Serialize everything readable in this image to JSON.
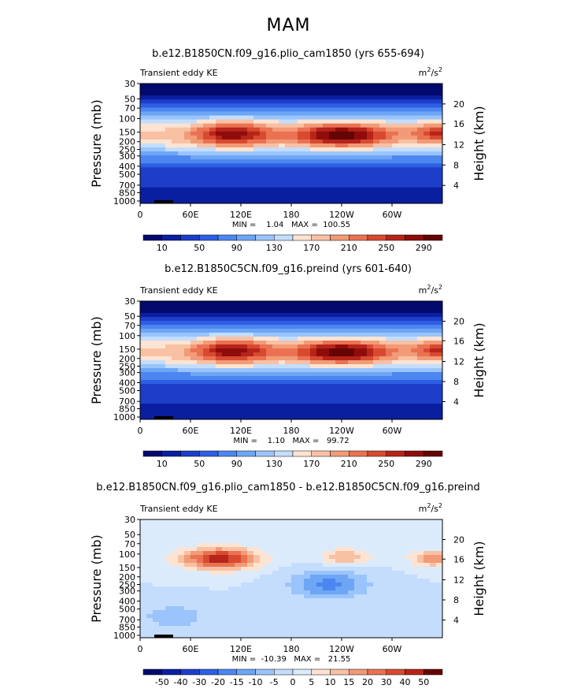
{
  "figure": {
    "suptitle": "MAM"
  },
  "chart_data": [
    {
      "type": "heatmap",
      "title": "b.e12.B1850CN.f09_g16.plio_cam1850 (yrs 655-694)",
      "left_label": "Transient eddy KE",
      "units_base": "m",
      "units_exp1": "2",
      "units_mid": "/s",
      "units_exp2": "2",
      "ylabel": "Pressure (mb)",
      "ylabel_right": "Height (km)",
      "x_ticks": [
        "0",
        "60E",
        "120E",
        "180",
        "120W",
        "60W"
      ],
      "x_tick_lon": [
        0,
        60,
        120,
        180,
        240,
        300
      ],
      "xlim": [
        0,
        360
      ],
      "y_ticks_pressure": [
        "30",
        "50",
        "70",
        "100",
        "150",
        "200",
        "250",
        "300",
        "400",
        "500",
        "700",
        "850",
        "1000"
      ],
      "y_ticks_height": [
        "20",
        "16",
        "12",
        "8",
        "4"
      ],
      "ylim_pressure": [
        1000,
        30
      ],
      "stats": "MIN =    1.04   MAX =  100.55",
      "colorbar_labels": [
        "10",
        "50",
        "90",
        "130",
        "170",
        "210",
        "250",
        "290"
      ],
      "colorbar_colors": [
        "#020a6e",
        "#0a1ea0",
        "#1c3ec8",
        "#2e5fe2",
        "#4c86f0",
        "#6ea6f6",
        "#9ac4fb",
        "#c4ddfd",
        "#fde4d2",
        "#f8c1a4",
        "#f29b78",
        "#ea7252",
        "#d84a30",
        "#b6241a",
        "#8e0c0c",
        "#640404"
      ],
      "levels_shown": "mid-level jet maxima near 150 mb around 90-140E and 230-260E; near-surface minima over high terrain"
    },
    {
      "type": "heatmap",
      "title": "b.e12.B1850C5CN.f09_g16.preind (yrs 601-640)",
      "left_label": "Transient eddy KE",
      "units_base": "m",
      "units_exp1": "2",
      "units_mid": "/s",
      "units_exp2": "2",
      "ylabel": "Pressure (mb)",
      "ylabel_right": "Height (km)",
      "x_ticks": [
        "0",
        "60E",
        "120E",
        "180",
        "120W",
        "60W"
      ],
      "x_tick_lon": [
        0,
        60,
        120,
        180,
        240,
        300
      ],
      "xlim": [
        0,
        360
      ],
      "y_ticks_pressure": [
        "30",
        "50",
        "70",
        "100",
        "150",
        "200",
        "250",
        "300",
        "400",
        "500",
        "700",
        "850",
        "1000"
      ],
      "y_ticks_height": [
        "20",
        "16",
        "12",
        "8",
        "4"
      ],
      "ylim_pressure": [
        1000,
        30
      ],
      "stats": "MIN =    1.10   MAX =   99.72",
      "colorbar_labels": [
        "10",
        "50",
        "90",
        "130",
        "170",
        "210",
        "250",
        "290"
      ],
      "colorbar_colors": [
        "#020a6e",
        "#0a1ea0",
        "#1c3ec8",
        "#2e5fe2",
        "#4c86f0",
        "#6ea6f6",
        "#9ac4fb",
        "#c4ddfd",
        "#fde4d2",
        "#f8c1a4",
        "#f29b78",
        "#ea7252",
        "#d84a30",
        "#b6241a",
        "#8e0c0c",
        "#640404"
      ]
    },
    {
      "type": "heatmap",
      "title": "b.e12.B1850CN.f09_g16.plio_cam1850 - b.e12.B1850C5CN.f09_g16.preind",
      "left_label": "Transient eddy KE",
      "units_base": "m",
      "units_exp1": "2",
      "units_mid": "/s",
      "units_exp2": "2",
      "ylabel": "Pressure (mb)",
      "ylabel_right": "Height (km)",
      "x_ticks": [
        "0",
        "60E",
        "120E",
        "180",
        "120W",
        "60W"
      ],
      "x_tick_lon": [
        0,
        60,
        120,
        180,
        240,
        300
      ],
      "xlim": [
        0,
        360
      ],
      "y_ticks_pressure": [
        "30",
        "50",
        "70",
        "100",
        "150",
        "200",
        "250",
        "300",
        "400",
        "500",
        "700",
        "850",
        "1000"
      ],
      "y_ticks_height": [
        "20",
        "16",
        "12",
        "8",
        "4"
      ],
      "ylim_pressure": [
        1000,
        30
      ],
      "stats": "MIN =  -10.39   MAX =   21.55",
      "colorbar_labels": [
        "-50",
        "-40",
        "-30",
        "-20",
        "-15",
        "-10",
        "-5",
        "0",
        "5",
        "10",
        "15",
        "20",
        "30",
        "40",
        "50"
      ],
      "colorbar_colors": [
        "#020a6e",
        "#0a1ea0",
        "#1c3ec8",
        "#2e5fe2",
        "#4c86f0",
        "#6ea6f6",
        "#9ac4fb",
        "#c4ddfd",
        "#dcebfc",
        "#fde4d2",
        "#f8c1a4",
        "#f29b78",
        "#ea7252",
        "#d84a30",
        "#b6241a",
        "#640404"
      ]
    }
  ]
}
